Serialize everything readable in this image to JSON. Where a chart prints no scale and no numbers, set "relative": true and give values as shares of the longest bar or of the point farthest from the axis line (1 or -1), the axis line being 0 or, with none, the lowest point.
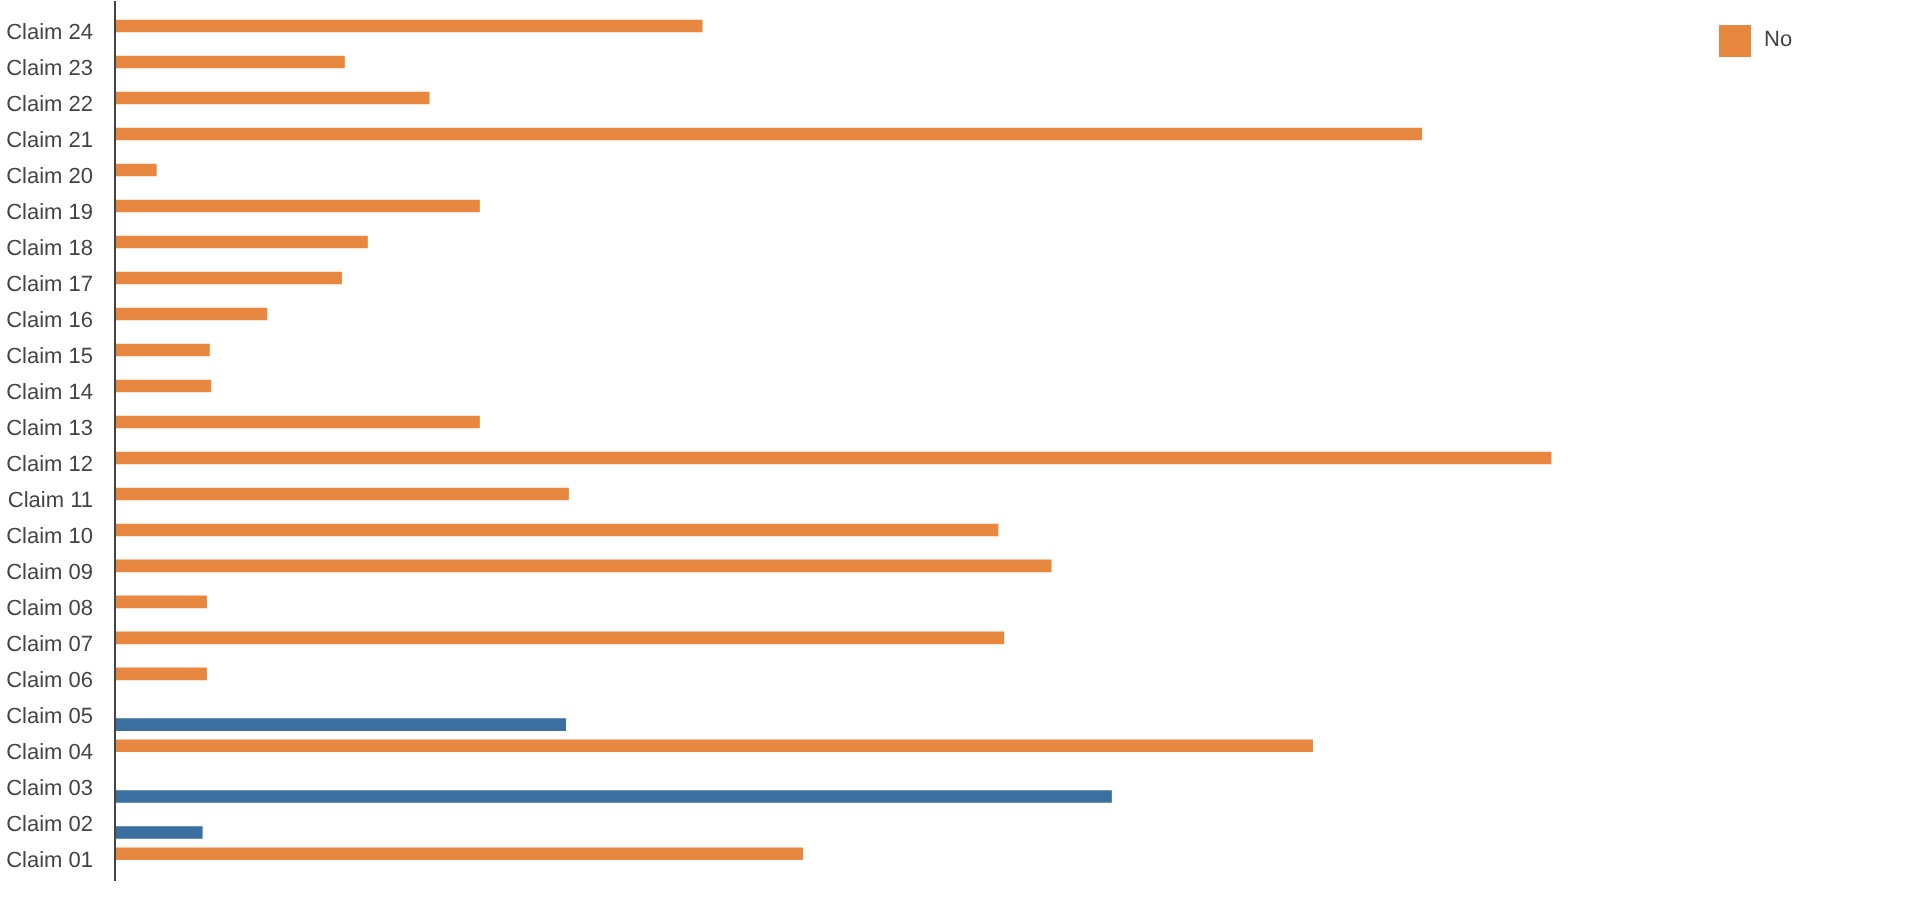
{
  "chart_data": {
    "type": "bar",
    "orientation": "horizontal",
    "relative": true,
    "legend": "top right",
    "categories": [
      "Claim 24",
      "Claim 23",
      "Claim 22",
      "Claim 21",
      "Claim 20",
      "Claim 19",
      "Claim 18",
      "Claim 17",
      "Claim 16",
      "Claim 15",
      "Claim 14",
      "Claim 13",
      "Claim 12",
      "Claim 11",
      "Claim 10",
      "Claim 09",
      "Claim 08",
      "Claim 07",
      "Claim 06",
      "Claim 05",
      "Claim 04",
      "Claim 03",
      "Claim 02",
      "Claim 01"
    ],
    "series": [
      {
        "color": "#3a6fa0",
        "values": [
          null,
          null,
          null,
          null,
          null,
          null,
          null,
          null,
          null,
          null,
          null,
          null,
          null,
          null,
          null,
          null,
          null,
          null,
          null,
          0.314,
          null,
          0.694,
          0.061,
          null
        ]
      },
      {
        "name": "No",
        "color": "#e8873f",
        "values": [
          0.409,
          0.16,
          0.219,
          0.91,
          0.029,
          0.254,
          0.176,
          0.158,
          0.106,
          0.066,
          0.067,
          0.254,
          1,
          0.316,
          0.615,
          0.652,
          0.064,
          0.619,
          0.064,
          null,
          0.834,
          null,
          null,
          0.479
        ]
      }
    ]
  }
}
